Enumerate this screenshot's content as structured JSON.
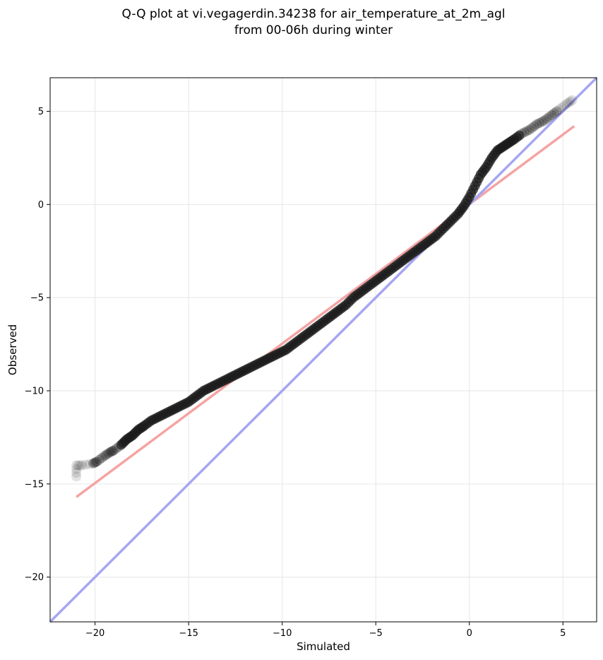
{
  "chart_data": {
    "type": "scatter",
    "title_line1": "Q-Q plot at vi.vegagerdin.34238 for air_temperature_at_2m_agl",
    "title_line2": "from 00-06h during winter",
    "xlabel": "Simulated",
    "ylabel": "Observed",
    "xlim": [
      -22.4,
      6.8
    ],
    "ylim": [
      -22.4,
      6.8
    ],
    "xticks": [
      -20,
      -15,
      -10,
      -5,
      0,
      5
    ],
    "yticks": [
      -20,
      -15,
      -10,
      -5,
      0,
      5
    ],
    "xtick_labels": [
      "−20",
      "−15",
      "−10",
      "−5",
      "0",
      "5"
    ],
    "ytick_labels": [
      "−20",
      "−15",
      "−10",
      "−5",
      "0",
      "5"
    ],
    "grid": true,
    "legend": "none",
    "quantile_points": [
      [
        -21.0,
        -14.6
      ],
      [
        -21.0,
        -14.0
      ],
      [
        -20.7,
        -14.0
      ],
      [
        -20.1,
        -13.9
      ],
      [
        -19.9,
        -13.8
      ],
      [
        -19.5,
        -13.5
      ],
      [
        -19.2,
        -13.3
      ],
      [
        -19.0,
        -13.2
      ],
      [
        -18.6,
        -12.9
      ],
      [
        -18.3,
        -12.6
      ],
      [
        -18.0,
        -12.4
      ],
      [
        -17.7,
        -12.1
      ],
      [
        -17.4,
        -11.9
      ],
      [
        -17.0,
        -11.6
      ],
      [
        -16.6,
        -11.4
      ],
      [
        -16.2,
        -11.2
      ],
      [
        -15.8,
        -11.0
      ],
      [
        -15.4,
        -10.8
      ],
      [
        -15.0,
        -10.6
      ],
      [
        -14.6,
        -10.3
      ],
      [
        -14.2,
        -10.0
      ],
      [
        -13.8,
        -9.8
      ],
      [
        -13.4,
        -9.6
      ],
      [
        -13.0,
        -9.4
      ],
      [
        -12.6,
        -9.2
      ],
      [
        -12.2,
        -9.0
      ],
      [
        -11.8,
        -8.8
      ],
      [
        -11.4,
        -8.6
      ],
      [
        -11.0,
        -8.4
      ],
      [
        -10.6,
        -8.2
      ],
      [
        -10.2,
        -8.0
      ],
      [
        -9.8,
        -7.8
      ],
      [
        -9.4,
        -7.5
      ],
      [
        -9.0,
        -7.2
      ],
      [
        -8.6,
        -6.9
      ],
      [
        -8.2,
        -6.6
      ],
      [
        -7.8,
        -6.3
      ],
      [
        -7.4,
        -6.0
      ],
      [
        -7.0,
        -5.7
      ],
      [
        -6.6,
        -5.4
      ],
      [
        -6.2,
        -5.0
      ],
      [
        -5.8,
        -4.7
      ],
      [
        -5.4,
        -4.4
      ],
      [
        -5.0,
        -4.1
      ],
      [
        -4.6,
        -3.8
      ],
      [
        -4.2,
        -3.5
      ],
      [
        -3.8,
        -3.2
      ],
      [
        -3.4,
        -2.9
      ],
      [
        -3.0,
        -2.6
      ],
      [
        -2.6,
        -2.3
      ],
      [
        -2.2,
        -2.0
      ],
      [
        -1.8,
        -1.7
      ],
      [
        -1.4,
        -1.3
      ],
      [
        -1.0,
        -0.9
      ],
      [
        -0.6,
        -0.5
      ],
      [
        -0.3,
        -0.1
      ],
      [
        0.0,
        0.4
      ],
      [
        0.3,
        1.0
      ],
      [
        0.6,
        1.6
      ],
      [
        0.9,
        2.0
      ],
      [
        1.2,
        2.5
      ],
      [
        1.5,
        2.9
      ],
      [
        1.8,
        3.1
      ],
      [
        2.1,
        3.3
      ],
      [
        2.4,
        3.5
      ],
      [
        2.8,
        3.8
      ],
      [
        3.2,
        4.0
      ],
      [
        3.6,
        4.3
      ],
      [
        4.0,
        4.5
      ],
      [
        4.4,
        4.8
      ],
      [
        4.8,
        5.1
      ],
      [
        5.2,
        5.4
      ],
      [
        5.5,
        5.6
      ]
    ],
    "reference_line": {
      "color": "#a6a6f2",
      "from": [
        -22.4,
        -22.4
      ],
      "to": [
        6.8,
        6.8
      ]
    },
    "fit_line": {
      "color": "#f5a3a3",
      "from": [
        -21.0,
        -15.7
      ],
      "to": [
        5.6,
        4.2
      ]
    },
    "point_color": "#1a1a1a"
  }
}
